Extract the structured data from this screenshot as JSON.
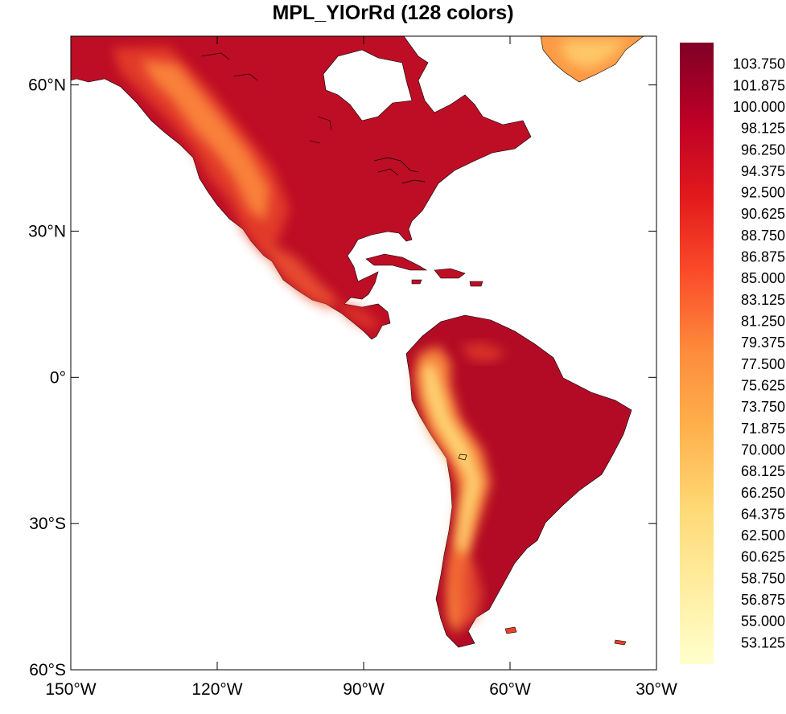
{
  "title": "MPL_YlOrRd (128 colors)",
  "map": {
    "projection": "cylindrical-equidistant",
    "lon_range": [
      -150,
      -30
    ],
    "lat_range": [
      -60,
      70
    ],
    "x_ticks": [
      {
        "lon": -150,
        "label": "150°W"
      },
      {
        "lon": -120,
        "label": "120°W"
      },
      {
        "lon": -90,
        "label": "90°W"
      },
      {
        "lon": -60,
        "label": "60°W"
      },
      {
        "lon": -30,
        "label": "30°W"
      }
    ],
    "y_ticks": [
      {
        "lat": 60,
        "label": "60°N"
      },
      {
        "lat": 30,
        "label": "30°N"
      },
      {
        "lat": 0,
        "label": "0°"
      },
      {
        "lat": -30,
        "label": "30°S"
      },
      {
        "lat": -60,
        "label": "60°S"
      }
    ],
    "colors": {
      "ocean": "#ffffff",
      "land_base": "#bd0e25",
      "land_dark": "#a10426",
      "highland_mid": "#e8422c",
      "highland_light": "#fd8d3c",
      "andes_light": "#fed976",
      "coast_line": "#000000"
    }
  },
  "colorbar": {
    "orientation": "vertical",
    "placement": "right",
    "colors": [
      "#800026",
      "#bd0026",
      "#e31a1c",
      "#fc4e2a",
      "#fd8d3c",
      "#feb24c",
      "#fed976",
      "#ffeda0",
      "#ffffcc"
    ],
    "labels": [
      "103.750",
      "101.875",
      "100.000",
      "98.125",
      "96.250",
      "94.375",
      "92.500",
      "90.625",
      "88.750",
      "86.875",
      "85.000",
      "83.125",
      "81.250",
      "79.375",
      "77.500",
      "75.625",
      "73.750",
      "71.875",
      "70.000",
      "68.125",
      "66.250",
      "64.375",
      "62.500",
      "60.625",
      "58.750",
      "56.875",
      "55.000",
      "53.125"
    ]
  }
}
